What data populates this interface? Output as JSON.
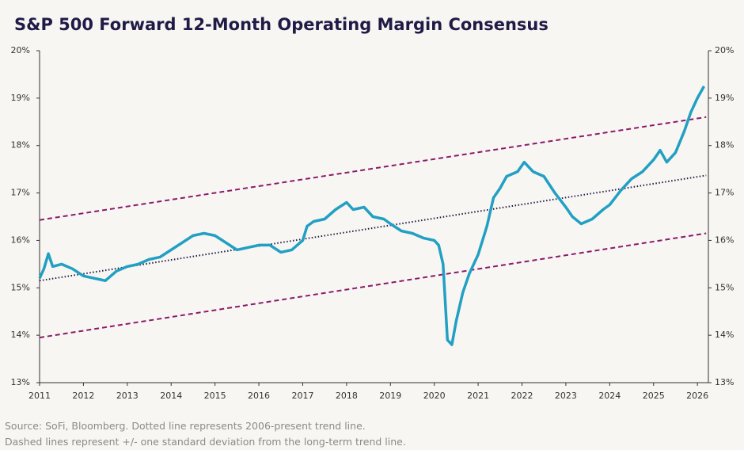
{
  "chart_data": {
    "type": "line",
    "title": "S&P 500 Forward 12-Month Operating Margin Consensus",
    "notes": [
      "Source: SoFi, Bloomberg. Dotted line represents 2006-present trend line.",
      "Dashed lines represent +/- one standard deviation from the long-term trend line."
    ],
    "xlim": [
      2011,
      2026.25
    ],
    "xticks": [
      2011,
      2012,
      2013,
      2014,
      2015,
      2016,
      2017,
      2018,
      2019,
      2020,
      2021,
      2022,
      2023,
      2024,
      2025,
      2026
    ],
    "ylim": [
      13,
      20
    ],
    "yticks": [
      {
        "value": 13,
        "label": "13%"
      },
      {
        "value": 14,
        "label": "14%"
      },
      {
        "value": 15,
        "label": "15%"
      },
      {
        "value": 16,
        "label": "16%"
      },
      {
        "value": 17,
        "label": "17%"
      },
      {
        "value": 18,
        "label": "18%"
      },
      {
        "value": 19,
        "label": "19%"
      },
      {
        "value": 20,
        "label": "20%"
      }
    ],
    "y2lim": [
      13,
      20
    ],
    "y2ticks": [
      {
        "value": 13,
        "label": "13%"
      },
      {
        "value": 14,
        "label": "14%"
      },
      {
        "value": 15,
        "label": "15%"
      },
      {
        "value": 16,
        "label": "16%"
      },
      {
        "value": 17,
        "label": "17%"
      },
      {
        "value": 18,
        "label": "18%"
      },
      {
        "value": 19,
        "label": "19%"
      },
      {
        "value": 20,
        "label": "20%"
      }
    ],
    "series": [
      {
        "color": "#22a0c4",
        "dash": "solid",
        "x": [
          2011.0,
          2011.1,
          2011.2,
          2011.3,
          2011.5,
          2011.75,
          2012.0,
          2012.25,
          2012.5,
          2012.75,
          2013.0,
          2013.25,
          2013.5,
          2013.75,
          2014.0,
          2014.25,
          2014.5,
          2014.75,
          2015.0,
          2015.25,
          2015.5,
          2015.75,
          2016.0,
          2016.25,
          2016.5,
          2016.75,
          2017.0,
          2017.1,
          2017.25,
          2017.5,
          2017.75,
          2018.0,
          2018.15,
          2018.4,
          2018.6,
          2018.85,
          2019.0,
          2019.25,
          2019.5,
          2019.75,
          2020.0,
          2020.1,
          2020.2,
          2020.3,
          2020.4,
          2020.5,
          2020.65,
          2020.8,
          2021.0,
          2021.2,
          2021.35,
          2021.5,
          2021.65,
          2021.9,
          2022.05,
          2022.25,
          2022.5,
          2022.75,
          2023.0,
          2023.15,
          2023.35,
          2023.6,
          2023.85,
          2024.0,
          2024.25,
          2024.5,
          2024.75,
          2025.0,
          2025.15,
          2025.3,
          2025.5,
          2025.7,
          2025.85,
          2026.0,
          2026.15
        ],
        "values": [
          15.2,
          15.4,
          15.72,
          15.45,
          15.5,
          15.4,
          15.25,
          15.2,
          15.15,
          15.35,
          15.45,
          15.5,
          15.6,
          15.65,
          15.8,
          15.95,
          16.1,
          16.15,
          16.1,
          15.95,
          15.8,
          15.85,
          15.9,
          15.9,
          15.75,
          15.8,
          16.0,
          16.3,
          16.4,
          16.45,
          16.65,
          16.8,
          16.65,
          16.7,
          16.5,
          16.45,
          16.35,
          16.2,
          16.15,
          16.05,
          16.0,
          15.9,
          15.5,
          13.9,
          13.8,
          14.3,
          14.9,
          15.3,
          15.7,
          16.3,
          16.9,
          17.1,
          17.35,
          17.45,
          17.65,
          17.45,
          17.35,
          17.0,
          16.7,
          16.5,
          16.35,
          16.45,
          16.65,
          16.75,
          17.05,
          17.3,
          17.45,
          17.7,
          17.9,
          17.65,
          17.85,
          18.3,
          18.7,
          19.0,
          19.25
        ]
      },
      {
        "color": "#1f1b46",
        "dash": "dotted",
        "x": [
          2011,
          2026.2
        ],
        "values": [
          15.15,
          17.37
        ]
      },
      {
        "color": "#8b1a6b",
        "dash": "dashed",
        "x": [
          2011,
          2026.2
        ],
        "values": [
          16.43,
          18.6
        ]
      },
      {
        "color": "#8b1a6b",
        "dash": "dashed",
        "x": [
          2011,
          2026.2
        ],
        "values": [
          13.95,
          16.15
        ]
      }
    ]
  }
}
